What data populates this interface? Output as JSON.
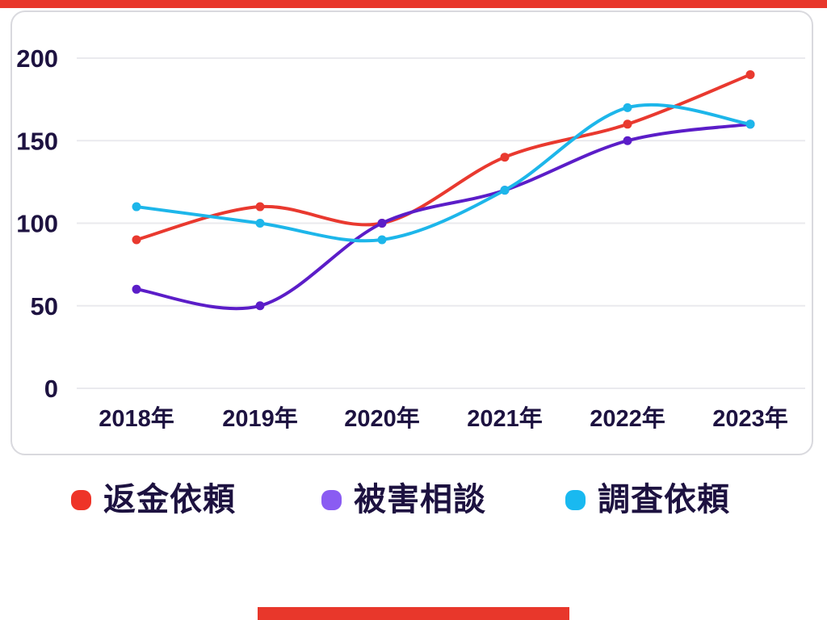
{
  "page": {
    "background": "#ffffff",
    "accent_bar_color": "#e8372b",
    "card_border_color": "#d9d9de",
    "text_color": "#1d1240",
    "grid_color": "#eaeaee"
  },
  "chart_data": {
    "type": "line",
    "title": "",
    "xlabel": "",
    "ylabel": "",
    "categories": [
      "2018年",
      "2019年",
      "2020年",
      "2021年",
      "2022年",
      "2023年"
    ],
    "series": [
      {
        "name": "返金依頼",
        "color": "#e9392f",
        "legend_color": "#ee3428",
        "values": [
          90,
          110,
          100,
          140,
          160,
          190
        ]
      },
      {
        "name": "被害相談",
        "color": "#5b1dc8",
        "legend_color": "#8a5cf2",
        "values": [
          60,
          50,
          100,
          120,
          150,
          160
        ]
      },
      {
        "name": "調査依頼",
        "color": "#1db6ea",
        "legend_color": "#19b9f0",
        "values": [
          110,
          100,
          90,
          120,
          170,
          160
        ]
      }
    ],
    "y_ticks": [
      0,
      50,
      100,
      150,
      200
    ],
    "ylim": [
      0,
      200
    ],
    "grid": true,
    "legend_position": "bottom",
    "curve": "smooth"
  }
}
